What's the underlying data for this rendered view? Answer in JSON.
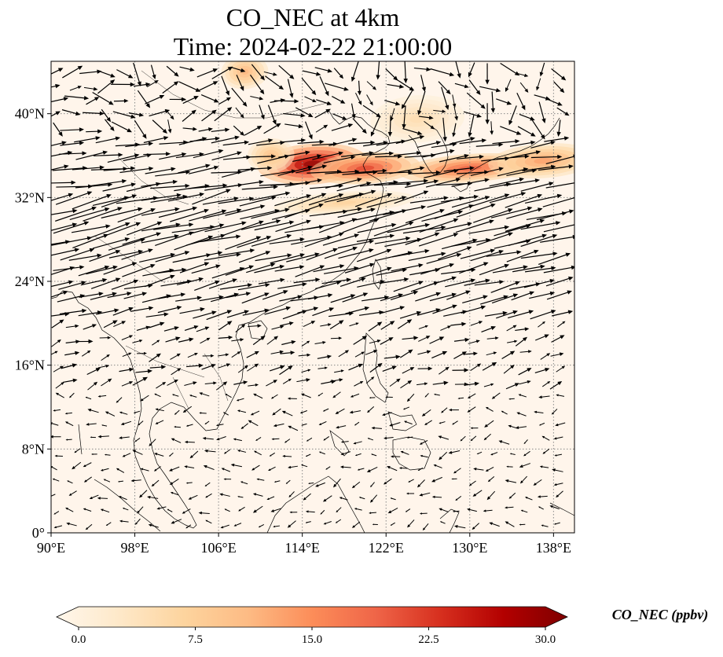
{
  "title_line1": "CO_NEC at 4km",
  "title_line2": "Time: 2024-02-22 21:00:00",
  "map": {
    "lon_range": [
      90,
      140
    ],
    "lat_range": [
      0,
      45
    ],
    "lon_ticks": [
      {
        "value": 90,
        "label": "90°E"
      },
      {
        "value": 98,
        "label": "98°E"
      },
      {
        "value": 106,
        "label": "106°E"
      },
      {
        "value": 114,
        "label": "114°E"
      },
      {
        "value": 122,
        "label": "122°E"
      },
      {
        "value": 130,
        "label": "130°E"
      },
      {
        "value": 138,
        "label": "138°E"
      }
    ],
    "lat_ticks": [
      {
        "value": 0,
        "label": "0°"
      },
      {
        "value": 8,
        "label": "8°N"
      },
      {
        "value": 16,
        "label": "16°N"
      },
      {
        "value": 24,
        "label": "24°N"
      },
      {
        "value": 32,
        "label": "32°N"
      },
      {
        "value": 40,
        "label": "40°N"
      }
    ],
    "gridlines": "dotted",
    "background_color": "#fff5eb",
    "plume_regions": [
      {
        "name": "north-china-core",
        "lon": 115,
        "lat": 35.2,
        "value": 30
      },
      {
        "name": "shandong-belt",
        "lon": 120,
        "lat": 34.8,
        "value": 22
      },
      {
        "name": "korea-japan-belt",
        "lon": 130,
        "lat": 34.8,
        "value": 20
      },
      {
        "name": "japan-east",
        "lon": 137,
        "lat": 35.5,
        "value": 14
      },
      {
        "name": "ordos-west",
        "lon": 111,
        "lat": 36,
        "value": 11
      },
      {
        "name": "inner-mongolia-north",
        "lon": 108.5,
        "lat": 44,
        "value": 12
      },
      {
        "name": "east-china-streak",
        "lon": 118,
        "lat": 31.5,
        "value": 8
      },
      {
        "name": "northeast-china",
        "lon": 125,
        "lat": 39.5,
        "value": 6
      }
    ],
    "wind_field": "westerly jet north of 20°N; weak variable easterlies in tropics"
  },
  "colorbar": {
    "label": "CO_NEC (ppbv)",
    "min": 0,
    "max": 30,
    "ticks": [
      {
        "value": 0,
        "label": "0.0"
      },
      {
        "value": 7.5,
        "label": "7.5"
      },
      {
        "value": 15,
        "label": "15.0"
      },
      {
        "value": 22.5,
        "label": "22.5"
      },
      {
        "value": 30,
        "label": "30.0"
      }
    ],
    "extend": "both",
    "colormap": "OrRd",
    "stops": [
      "#fff7ec",
      "#fee8c8",
      "#fdd49e",
      "#fdbb84",
      "#fc8d59",
      "#ef6548",
      "#d7301f",
      "#b30000",
      "#7f0000"
    ]
  }
}
